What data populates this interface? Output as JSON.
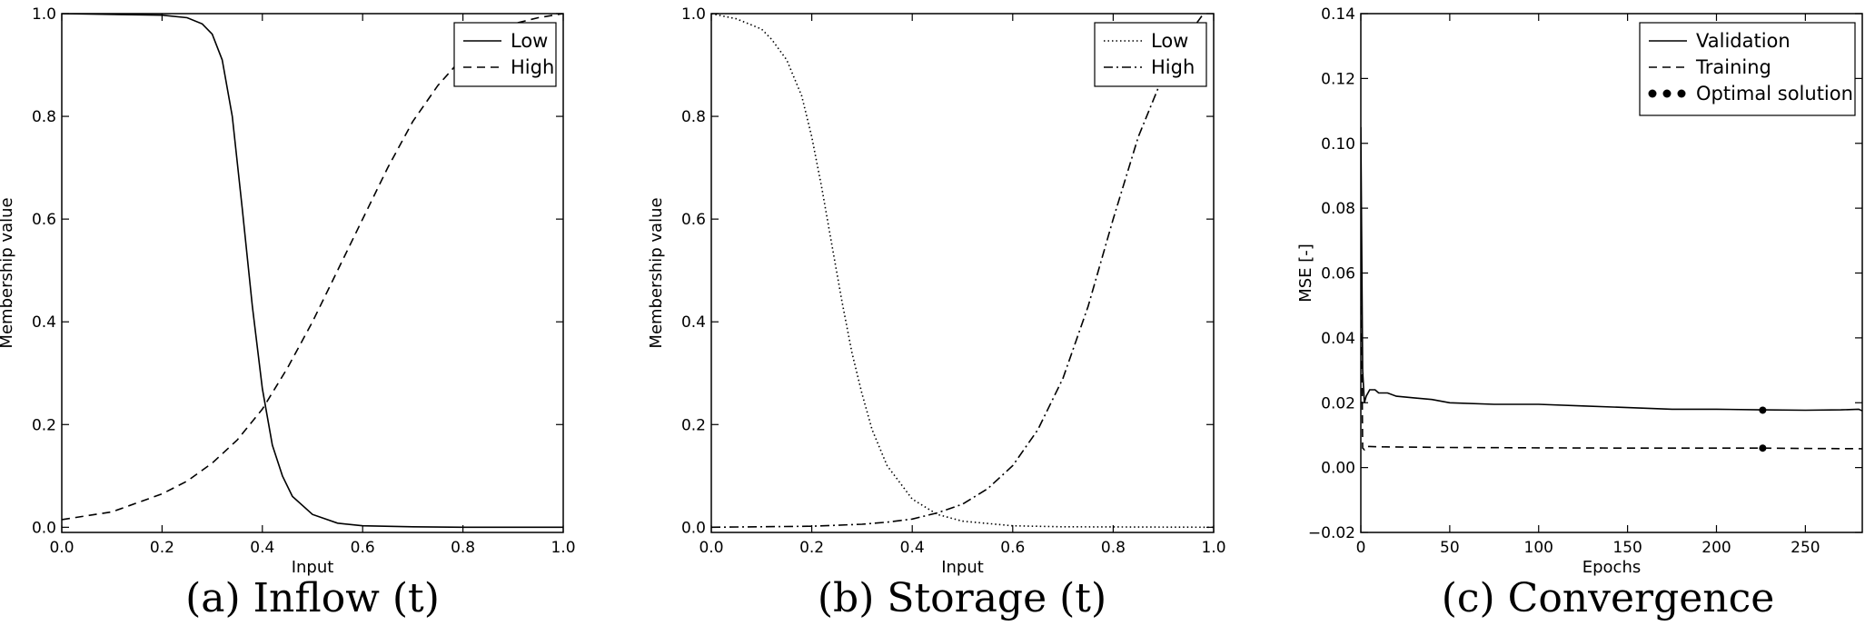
{
  "chart_data": [
    {
      "type": "line",
      "caption": "(a) Inflow (t)",
      "xlabel": "Input",
      "ylabel": "Membership value",
      "xlim": [
        0.0,
        1.0
      ],
      "ylim": [
        -0.01,
        1.0
      ],
      "xticks": [
        "0.0",
        "0.2",
        "0.4",
        "0.6",
        "0.8",
        "1.0"
      ],
      "yticks": [
        "0.0",
        "0.2",
        "0.4",
        "0.6",
        "0.8",
        "1.0"
      ],
      "legend_position": "top-right",
      "series": [
        {
          "name": "Low",
          "style": "solid",
          "x": [
            0.0,
            0.2,
            0.25,
            0.28,
            0.3,
            0.32,
            0.34,
            0.36,
            0.38,
            0.4,
            0.42,
            0.44,
            0.46,
            0.5,
            0.55,
            0.6,
            0.7,
            0.8,
            1.0
          ],
          "values": [
            1.0,
            0.997,
            0.992,
            0.98,
            0.96,
            0.91,
            0.8,
            0.62,
            0.43,
            0.27,
            0.16,
            0.1,
            0.06,
            0.025,
            0.008,
            0.003,
            0.001,
            0.0,
            0.0
          ]
        },
        {
          "name": "High",
          "style": "dashed",
          "x": [
            0.0,
            0.1,
            0.2,
            0.25,
            0.3,
            0.35,
            0.4,
            0.45,
            0.5,
            0.55,
            0.6,
            0.65,
            0.7,
            0.75,
            0.8,
            0.85,
            0.9,
            0.95,
            1.0
          ],
          "values": [
            0.015,
            0.03,
            0.065,
            0.09,
            0.125,
            0.17,
            0.23,
            0.31,
            0.4,
            0.5,
            0.6,
            0.7,
            0.79,
            0.86,
            0.915,
            0.955,
            0.98,
            0.992,
            1.0
          ]
        }
      ]
    },
    {
      "type": "line",
      "caption": "(b) Storage (t)",
      "xlabel": "Input",
      "ylabel": "Membership value",
      "xlim": [
        0.0,
        1.0
      ],
      "ylim": [
        -0.01,
        1.0
      ],
      "xticks": [
        "0.0",
        "0.2",
        "0.4",
        "0.6",
        "0.8",
        "1.0"
      ],
      "yticks": [
        "0.0",
        "0.2",
        "0.4",
        "0.6",
        "0.8",
        "1.0"
      ],
      "legend_position": "top-right",
      "series": [
        {
          "name": "Low",
          "style": "dotted",
          "x": [
            0.0,
            0.05,
            0.1,
            0.12,
            0.15,
            0.18,
            0.2,
            0.22,
            0.24,
            0.26,
            0.28,
            0.3,
            0.32,
            0.35,
            0.4,
            0.45,
            0.5,
            0.6,
            0.7,
            1.0
          ],
          "values": [
            1.0,
            0.99,
            0.97,
            0.95,
            0.91,
            0.84,
            0.76,
            0.66,
            0.55,
            0.44,
            0.34,
            0.26,
            0.19,
            0.12,
            0.055,
            0.025,
            0.012,
            0.003,
            0.001,
            0.0
          ]
        },
        {
          "name": "High",
          "style": "dashdot",
          "x": [
            0.0,
            0.2,
            0.3,
            0.35,
            0.4,
            0.45,
            0.5,
            0.55,
            0.6,
            0.65,
            0.7,
            0.75,
            0.8,
            0.85,
            0.9,
            0.95,
            0.98
          ],
          "values": [
            0.0,
            0.002,
            0.006,
            0.01,
            0.016,
            0.028,
            0.045,
            0.075,
            0.12,
            0.19,
            0.29,
            0.43,
            0.6,
            0.76,
            0.88,
            0.96,
            1.0
          ]
        }
      ]
    },
    {
      "type": "line",
      "caption": "(c) Convergence",
      "xlabel": "Epochs",
      "ylabel": "MSE [-]",
      "xlim": [
        0,
        282
      ],
      "ylim": [
        -0.02,
        0.14
      ],
      "xticks": [
        "0",
        "50",
        "100",
        "150",
        "200",
        "250"
      ],
      "yticks": [
        "−0.02",
        "0.00",
        "0.02",
        "0.04",
        "0.06",
        "0.08",
        "0.10",
        "0.12",
        "0.14"
      ],
      "legend_position": "top-right",
      "series": [
        {
          "name": "Validation",
          "style": "solid",
          "x": [
            0,
            1,
            2,
            3,
            5,
            8,
            10,
            15,
            20,
            30,
            40,
            50,
            75,
            100,
            125,
            150,
            175,
            200,
            225,
            250,
            270,
            280,
            282
          ],
          "values": [
            0.105,
            0.03,
            0.02,
            0.022,
            0.024,
            0.024,
            0.023,
            0.023,
            0.022,
            0.0215,
            0.021,
            0.02,
            0.0195,
            0.0195,
            0.019,
            0.0185,
            0.018,
            0.018,
            0.0178,
            0.0177,
            0.0178,
            0.018,
            0.0175
          ]
        },
        {
          "name": "Training",
          "style": "dashed",
          "x": [
            0,
            1,
            2,
            3,
            5,
            10,
            50,
            100,
            150,
            200,
            225,
            250,
            282
          ],
          "values": [
            0.075,
            0.006,
            0.0055,
            0.0065,
            0.0065,
            0.0064,
            0.0062,
            0.0061,
            0.006,
            0.006,
            0.006,
            0.0059,
            0.0058
          ]
        },
        {
          "name": "Optimal solution",
          "style": "markers",
          "x": [
            226,
            226
          ],
          "values": [
            0.0177,
            0.006
          ]
        }
      ]
    }
  ]
}
